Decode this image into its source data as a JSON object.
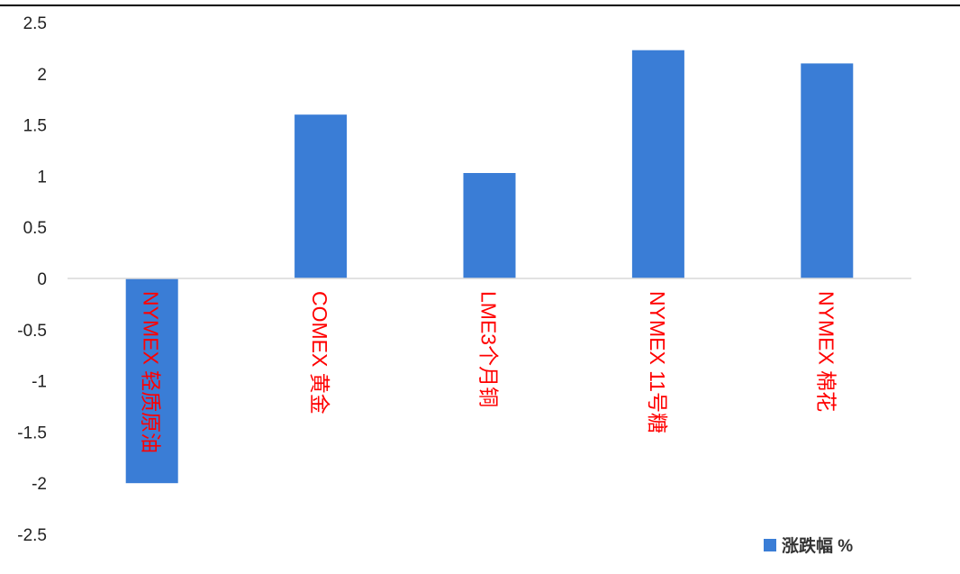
{
  "chart_data": {
    "type": "bar",
    "categories": [
      "NYMEX 轻质原油",
      "COMEX 黄金",
      "LME3个月铜",
      "NYMEX 11号糖",
      "NYMEX 棉花"
    ],
    "series": [
      {
        "name": "涨跌幅 %",
        "values": [
          -2.0,
          1.6,
          1.03,
          2.23,
          2.1
        ]
      }
    ],
    "ylim": [
      -2.5,
      2.5
    ],
    "yticks": [
      "2.5",
      "2",
      "1.5",
      "1",
      "0.5",
      "0",
      "-0.5",
      "-1",
      "-1.5",
      "-2",
      "-2.5"
    ],
    "xlabel": "",
    "ylabel": "",
    "grid": false,
    "legend_position": "bottom-right",
    "colors": {
      "bar": "#3a7dd6",
      "category_label": "#ff0000",
      "axis_line": "#d9d9d9",
      "top_rule": "#000000"
    }
  }
}
